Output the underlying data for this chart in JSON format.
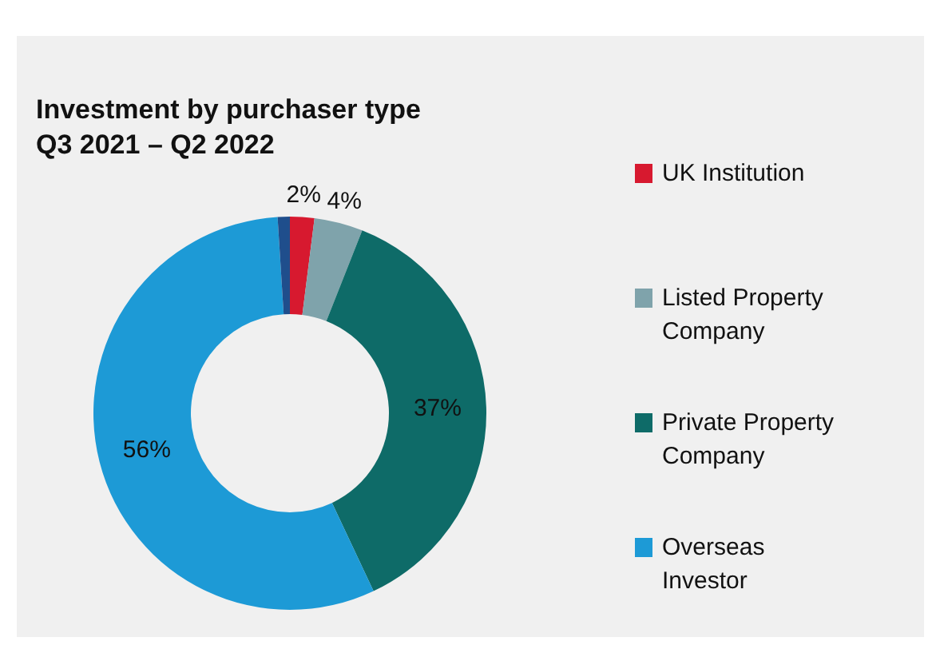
{
  "chart_data": {
    "type": "donut",
    "title": "Investment by purchaser type",
    "subtitle": "Q3 2021 – Q2 2022",
    "categories": [
      "UK Institution",
      "Listed Property Company",
      "Private Property Company",
      "Overseas Investor",
      null
    ],
    "values": [
      2,
      4,
      37,
      56,
      1
    ],
    "colors": [
      "#d7192f",
      "#7fa3ab",
      "#0e6b68",
      "#1d9ad6",
      "#1f4e8c"
    ],
    "value_labels": [
      "2%",
      "4%",
      "37%",
      "56%",
      null
    ],
    "legend": "right"
  }
}
